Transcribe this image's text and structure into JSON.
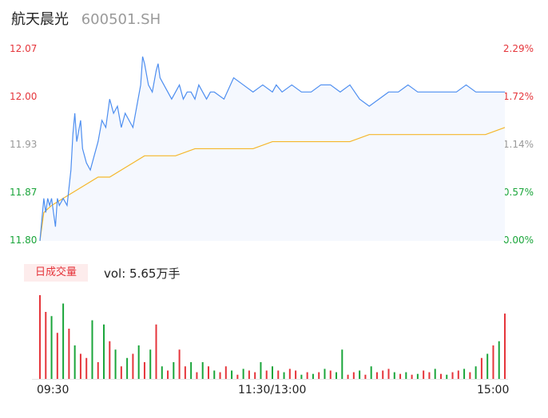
{
  "header": {
    "name": "航天晨光",
    "code": "600501.SH"
  },
  "colors": {
    "up": "#e5353b",
    "down": "#1aa53a",
    "flat": "#999999",
    "price_line": "#4d8ef0",
    "avg_line": "#f5b72a",
    "fill": "#f5f8fe"
  },
  "volume": {
    "badge": "日成交量",
    "text": "vol: 5.65万手"
  },
  "chart_data": [
    {
      "type": "line",
      "title": "",
      "x_ticks": [
        "09:30",
        "11:30/13:00",
        "15:00"
      ],
      "y_left_ticks": [
        "12.07",
        "12.00",
        "11.93",
        "11.87",
        "11.80"
      ],
      "y_right_ticks": [
        "2.29%",
        "1.72%",
        "1.14%",
        "0.57%",
        "0.00%"
      ],
      "ylim": [
        11.8,
        12.07
      ],
      "series": [
        {
          "role": "price",
          "x": [
            0,
            1,
            2,
            3,
            4,
            5,
            6,
            8,
            9,
            10,
            12,
            14,
            16,
            17,
            18,
            19,
            21,
            22,
            23,
            24,
            26,
            28,
            30,
            32,
            34,
            36,
            38,
            40,
            42,
            44,
            46,
            48,
            50,
            52,
            53,
            54,
            56,
            58,
            60,
            61,
            62,
            64,
            66,
            68,
            70,
            72,
            74,
            76,
            78,
            80,
            82,
            84,
            86,
            88,
            90,
            95,
            100,
            105,
            110,
            115,
            120,
            122,
            125,
            130,
            135,
            140,
            145,
            150,
            155,
            160,
            165,
            170,
            175,
            180,
            185,
            190,
            195,
            200,
            205,
            210,
            215,
            220,
            225,
            230,
            235,
            240
          ],
          "y": [
            11.8,
            11.83,
            11.86,
            11.84,
            11.86,
            11.85,
            11.86,
            11.82,
            11.86,
            11.85,
            11.86,
            11.85,
            11.9,
            11.95,
            11.98,
            11.94,
            11.97,
            11.93,
            11.92,
            11.91,
            11.9,
            11.92,
            11.94,
            11.97,
            11.96,
            12.0,
            11.98,
            11.99,
            11.96,
            11.98,
            11.97,
            11.96,
            11.99,
            12.02,
            12.06,
            12.05,
            12.02,
            12.01,
            12.04,
            12.05,
            12.03,
            12.02,
            12.01,
            12.0,
            12.01,
            12.02,
            12.0,
            12.01,
            12.01,
            12.0,
            12.02,
            12.01,
            12.0,
            12.01,
            12.01,
            12.0,
            12.03,
            12.02,
            12.01,
            12.02,
            12.01,
            12.02,
            12.01,
            12.02,
            12.01,
            12.01,
            12.02,
            12.02,
            12.01,
            12.02,
            12.0,
            11.99,
            12.0,
            12.01,
            12.01,
            12.02,
            12.01,
            12.01,
            12.01,
            12.01,
            12.01,
            12.02,
            12.01,
            12.01,
            12.01,
            12.01
          ]
        },
        {
          "role": "average",
          "x": [
            0,
            2,
            6,
            12,
            18,
            24,
            30,
            36,
            42,
            48,
            54,
            60,
            70,
            80,
            90,
            100,
            110,
            120,
            130,
            140,
            150,
            160,
            170,
            180,
            190,
            200,
            210,
            220,
            230,
            240
          ],
          "y": [
            11.8,
            11.84,
            11.85,
            11.86,
            11.87,
            11.88,
            11.89,
            11.89,
            11.9,
            11.91,
            11.92,
            11.92,
            11.92,
            11.93,
            11.93,
            11.93,
            11.93,
            11.94,
            11.94,
            11.94,
            11.94,
            11.94,
            11.95,
            11.95,
            11.95,
            11.95,
            11.95,
            11.95,
            11.95,
            11.96
          ]
        }
      ]
    },
    {
      "type": "bar",
      "title": "日成交量",
      "x": [
        0,
        3,
        6,
        9,
        12,
        15,
        18,
        21,
        24,
        27,
        30,
        33,
        36,
        39,
        42,
        45,
        48,
        51,
        54,
        57,
        60,
        63,
        66,
        69,
        72,
        75,
        78,
        81,
        84,
        87,
        90,
        93,
        96,
        99,
        102,
        105,
        108,
        111,
        114,
        117,
        120,
        123,
        126,
        129,
        132,
        135,
        138,
        141,
        144,
        147,
        150,
        153,
        156,
        159,
        162,
        165,
        168,
        171,
        174,
        177,
        180,
        183,
        186,
        189,
        192,
        195,
        198,
        201,
        204,
        207,
        210,
        213,
        216,
        219,
        222,
        225,
        228,
        231,
        234,
        237,
        240
      ],
      "values": [
        100,
        80,
        75,
        55,
        90,
        60,
        40,
        30,
        25,
        70,
        20,
        65,
        45,
        35,
        15,
        25,
        30,
        40,
        20,
        35,
        65,
        15,
        10,
        20,
        35,
        15,
        20,
        8,
        20,
        15,
        10,
        8,
        15,
        10,
        5,
        12,
        10,
        8,
        20,
        10,
        15,
        10,
        8,
        12,
        10,
        5,
        8,
        6,
        8,
        12,
        10,
        8,
        35,
        5,
        8,
        10,
        5,
        15,
        8,
        10,
        12,
        8,
        6,
        8,
        5,
        6,
        10,
        8,
        12,
        6,
        5,
        8,
        10,
        12,
        8,
        15,
        25,
        30,
        40,
        45,
        78
      ],
      "directions": [
        "up",
        "up",
        "down",
        "up",
        "down",
        "up",
        "down",
        "up",
        "up",
        "down",
        "up",
        "down",
        "up",
        "down",
        "up",
        "down",
        "up",
        "down",
        "up",
        "down",
        "up",
        "down",
        "up",
        "down",
        "up",
        "up",
        "down",
        "up",
        "down",
        "up",
        "down",
        "up",
        "up",
        "down",
        "up",
        "down",
        "up",
        "up",
        "down",
        "up",
        "down",
        "up",
        "down",
        "up",
        "up",
        "down",
        "up",
        "down",
        "up",
        "down",
        "up",
        "down",
        "down",
        "up",
        "up",
        "down",
        "up",
        "down",
        "up",
        "up",
        "up",
        "down",
        "up",
        "down",
        "up",
        "down",
        "up",
        "up",
        "down",
        "up",
        "down",
        "up",
        "up",
        "down",
        "up",
        "down",
        "up",
        "down",
        "up",
        "down",
        "up"
      ]
    }
  ]
}
